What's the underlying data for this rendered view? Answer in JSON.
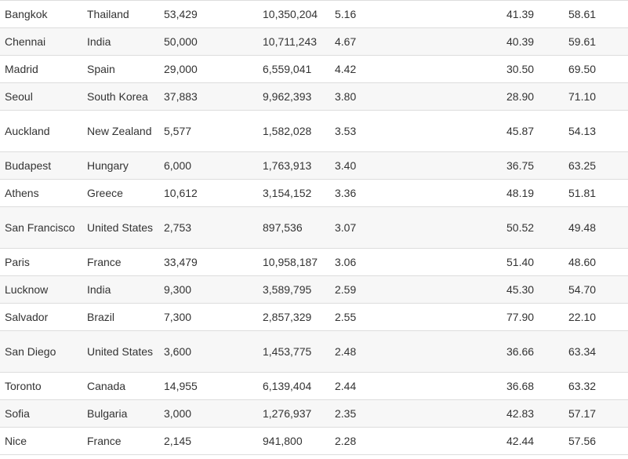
{
  "table": {
    "rows": [
      {
        "city": "Bangkok",
        "country": "Thailand",
        "c3": "53,429",
        "c4": "10,350,204",
        "c5": "5.16",
        "c6": "41.39",
        "c7": "58.61",
        "tall": false
      },
      {
        "city": "Chennai",
        "country": "India",
        "c3": "50,000",
        "c4": "10,711,243",
        "c5": "4.67",
        "c6": "40.39",
        "c7": "59.61",
        "tall": false
      },
      {
        "city": "Madrid",
        "country": "Spain",
        "c3": "29,000",
        "c4": "6,559,041",
        "c5": "4.42",
        "c6": "30.50",
        "c7": "69.50",
        "tall": false
      },
      {
        "city": "Seoul",
        "country": "South Korea",
        "c3": "37,883",
        "c4": "9,962,393",
        "c5": "3.80",
        "c6": "28.90",
        "c7": "71.10",
        "tall": false
      },
      {
        "city": "Auckland",
        "country": "New Zealand",
        "c3": "5,577",
        "c4": "1,582,028",
        "c5": "3.53",
        "c6": "45.87",
        "c7": "54.13",
        "tall": true
      },
      {
        "city": "Budapest",
        "country": "Hungary",
        "c3": "6,000",
        "c4": "1,763,913",
        "c5": "3.40",
        "c6": "36.75",
        "c7": "63.25",
        "tall": false
      },
      {
        "city": "Athens",
        "country": "Greece",
        "c3": "10,612",
        "c4": "3,154,152",
        "c5": "3.36",
        "c6": "48.19",
        "c7": "51.81",
        "tall": false
      },
      {
        "city": "San Francisco",
        "country": "United States",
        "c3": "2,753",
        "c4": "897,536",
        "c5": "3.07",
        "c6": "50.52",
        "c7": "49.48",
        "tall": true
      },
      {
        "city": "Paris",
        "country": "France",
        "c3": "33,479",
        "c4": "10,958,187",
        "c5": "3.06",
        "c6": "51.40",
        "c7": "48.60",
        "tall": false
      },
      {
        "city": "Lucknow",
        "country": "India",
        "c3": "9,300",
        "c4": "3,589,795",
        "c5": "2.59",
        "c6": "45.30",
        "c7": "54.70",
        "tall": false
      },
      {
        "city": "Salvador",
        "country": "Brazil",
        "c3": "7,300",
        "c4": "2,857,329",
        "c5": "2.55",
        "c6": "77.90",
        "c7": "22.10",
        "tall": false
      },
      {
        "city": "San Diego",
        "country": "United States",
        "c3": "3,600",
        "c4": "1,453,775",
        "c5": "2.48",
        "c6": "36.66",
        "c7": "63.34",
        "tall": true
      },
      {
        "city": "Toronto",
        "country": "Canada",
        "c3": "14,955",
        "c4": "6,139,404",
        "c5": "2.44",
        "c6": "36.68",
        "c7": "63.32",
        "tall": false
      },
      {
        "city": "Sofia",
        "country": "Bulgaria",
        "c3": "3,000",
        "c4": "1,276,937",
        "c5": "2.35",
        "c6": "42.83",
        "c7": "57.17",
        "tall": false
      },
      {
        "city": "Nice",
        "country": "France",
        "c3": "2,145",
        "c4": "941,800",
        "c5": "2.28",
        "c6": "42.44",
        "c7": "57.56",
        "tall": false
      }
    ]
  }
}
